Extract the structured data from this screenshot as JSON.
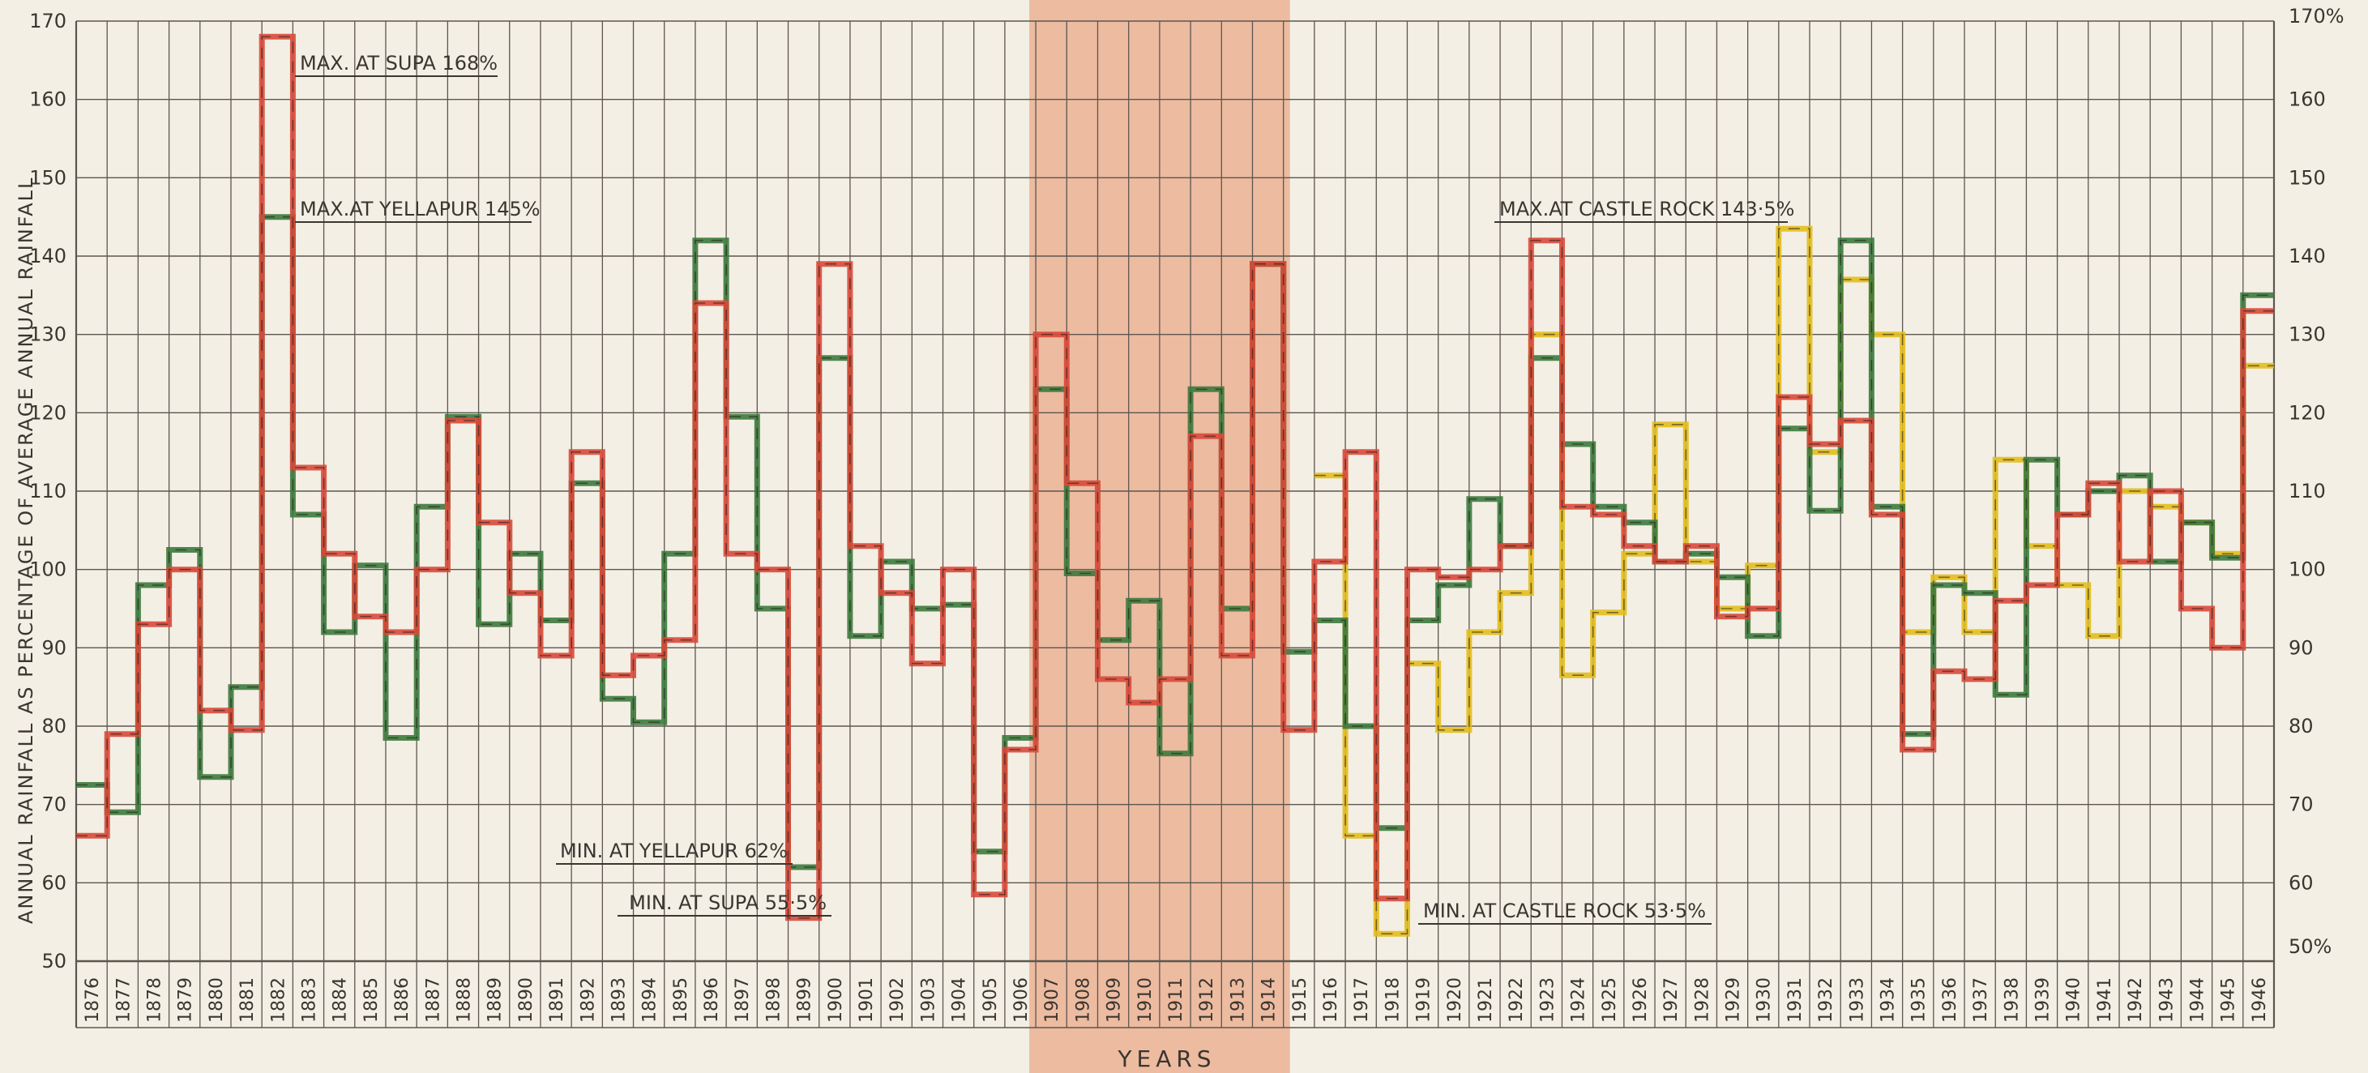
{
  "chart_data": {
    "type": "line",
    "step": true,
    "xlabel": "YEARS",
    "ylabel": "ANNUAL  RAINFALL  AS  PERCENTAGE  OF  AVERAGE  ANNUAL  RAINFALL",
    "x": [
      "1876",
      "1877",
      "1878",
      "1879",
      "1880",
      "1881",
      "1882",
      "1883",
      "1884",
      "1885",
      "1886",
      "1887",
      "1888",
      "1889",
      "1890",
      "1891",
      "1892",
      "1893",
      "1894",
      "1895",
      "1896",
      "1897",
      "1898",
      "1899",
      "1900",
      "1901",
      "1902",
      "1903",
      "1904",
      "1905",
      "1906",
      "1907",
      "1908",
      "1909",
      "1910",
      "1911",
      "1912",
      "1913",
      "1914",
      "1915",
      "1916",
      "1917",
      "1918",
      "1919",
      "1920",
      "1921",
      "1922",
      "1923",
      "1924",
      "1925",
      "1926",
      "1927",
      "1928",
      "1929",
      "1930",
      "1931",
      "1932",
      "1933",
      "1934",
      "1935",
      "1936",
      "1937",
      "1938",
      "1939",
      "1940",
      "1941",
      "1942",
      "1943",
      "1944",
      "1945",
      "1946"
    ],
    "ylim": [
      50,
      170
    ],
    "yticks_left": [
      "50",
      "60",
      "70",
      "80",
      "90",
      "100",
      "110",
      "120",
      "130",
      "140",
      "150",
      "160",
      "170"
    ],
    "yticks_right": [
      "50%",
      "60",
      "70",
      "80",
      "90",
      "100",
      "110",
      "120",
      "130",
      "140",
      "150",
      "160",
      "170%"
    ],
    "grid": true,
    "colors": {
      "red": "#d9493a",
      "green": "#3d7a3d",
      "yellow": "#e3bd1c",
      "band": "#e9a98a",
      "grid": "#5c5650",
      "background": "#f3efe4"
    },
    "series": [
      {
        "color": "red",
        "values": [
          66,
          79,
          93,
          100,
          82,
          79.5,
          168,
          113,
          102,
          94,
          92,
          100,
          119,
          106,
          97,
          89,
          115,
          86.5,
          89,
          91,
          134,
          102,
          100,
          55.5,
          139,
          103,
          97,
          88,
          100,
          58.5,
          77,
          130,
          111,
          86,
          83,
          86,
          117,
          89,
          139,
          79.5,
          101,
          115,
          58,
          100,
          99,
          100,
          103,
          142,
          108,
          107,
          103,
          101,
          103,
          94,
          95,
          122,
          116,
          119,
          107,
          77,
          87,
          86,
          96,
          98,
          107,
          111,
          101,
          110,
          95,
          90,
          133
        ]
      },
      {
        "color": "green",
        "values": [
          72.5,
          69,
          98,
          102.5,
          73.5,
          85,
          145,
          107,
          92,
          100.5,
          78.5,
          108,
          119.5,
          93,
          102,
          93.5,
          111,
          83.5,
          80.5,
          102,
          142,
          119.5,
          95,
          62,
          127,
          91.5,
          101,
          95,
          95.5,
          64,
          78.5,
          123,
          99.5,
          91,
          96,
          76.5,
          123,
          95,
          139,
          89.5,
          93.5,
          80,
          67,
          93.5,
          98,
          109,
          103,
          127,
          116,
          108,
          106,
          101,
          102,
          99,
          91.5,
          118,
          107.5,
          142,
          108,
          79,
          98,
          97,
          84,
          114,
          107,
          110,
          112,
          101,
          106,
          101.5,
          135
        ]
      },
      {
        "color": "yellow",
        "values": [
          null,
          null,
          null,
          null,
          null,
          null,
          null,
          null,
          null,
          null,
          null,
          null,
          null,
          null,
          null,
          null,
          null,
          null,
          null,
          null,
          null,
          null,
          null,
          null,
          null,
          null,
          null,
          null,
          null,
          null,
          null,
          null,
          null,
          null,
          null,
          null,
          null,
          null,
          null,
          null,
          112,
          66,
          53.5,
          88,
          79.5,
          92,
          97,
          130,
          86.5,
          94.5,
          102,
          118.5,
          101,
          95,
          100.5,
          143.5,
          115,
          137,
          130,
          92,
          99,
          92,
          114,
          103,
          98,
          91.5,
          110,
          108,
          106,
          102,
          126
        ]
      }
    ],
    "annotations": [
      {
        "text": "MAX. AT SUPA 168%",
        "year": "1882",
        "value": 168
      },
      {
        "text": "MAX.AT YELLAPUR 145%",
        "year": "1882",
        "value": 145
      },
      {
        "text": "MIN. AT YELLAPUR 62%",
        "year": "1899",
        "value": 62
      },
      {
        "text": "MIN. AT SUPA 55·5%",
        "year": "1899",
        "value": 55.5
      },
      {
        "text": "MAX.AT CASTLE ROCK 143·5%",
        "year": "1931",
        "value": 143.5
      },
      {
        "text": "MIN. AT CASTLE ROCK 53·5%",
        "year": "1918",
        "value": 53.5
      }
    ]
  }
}
